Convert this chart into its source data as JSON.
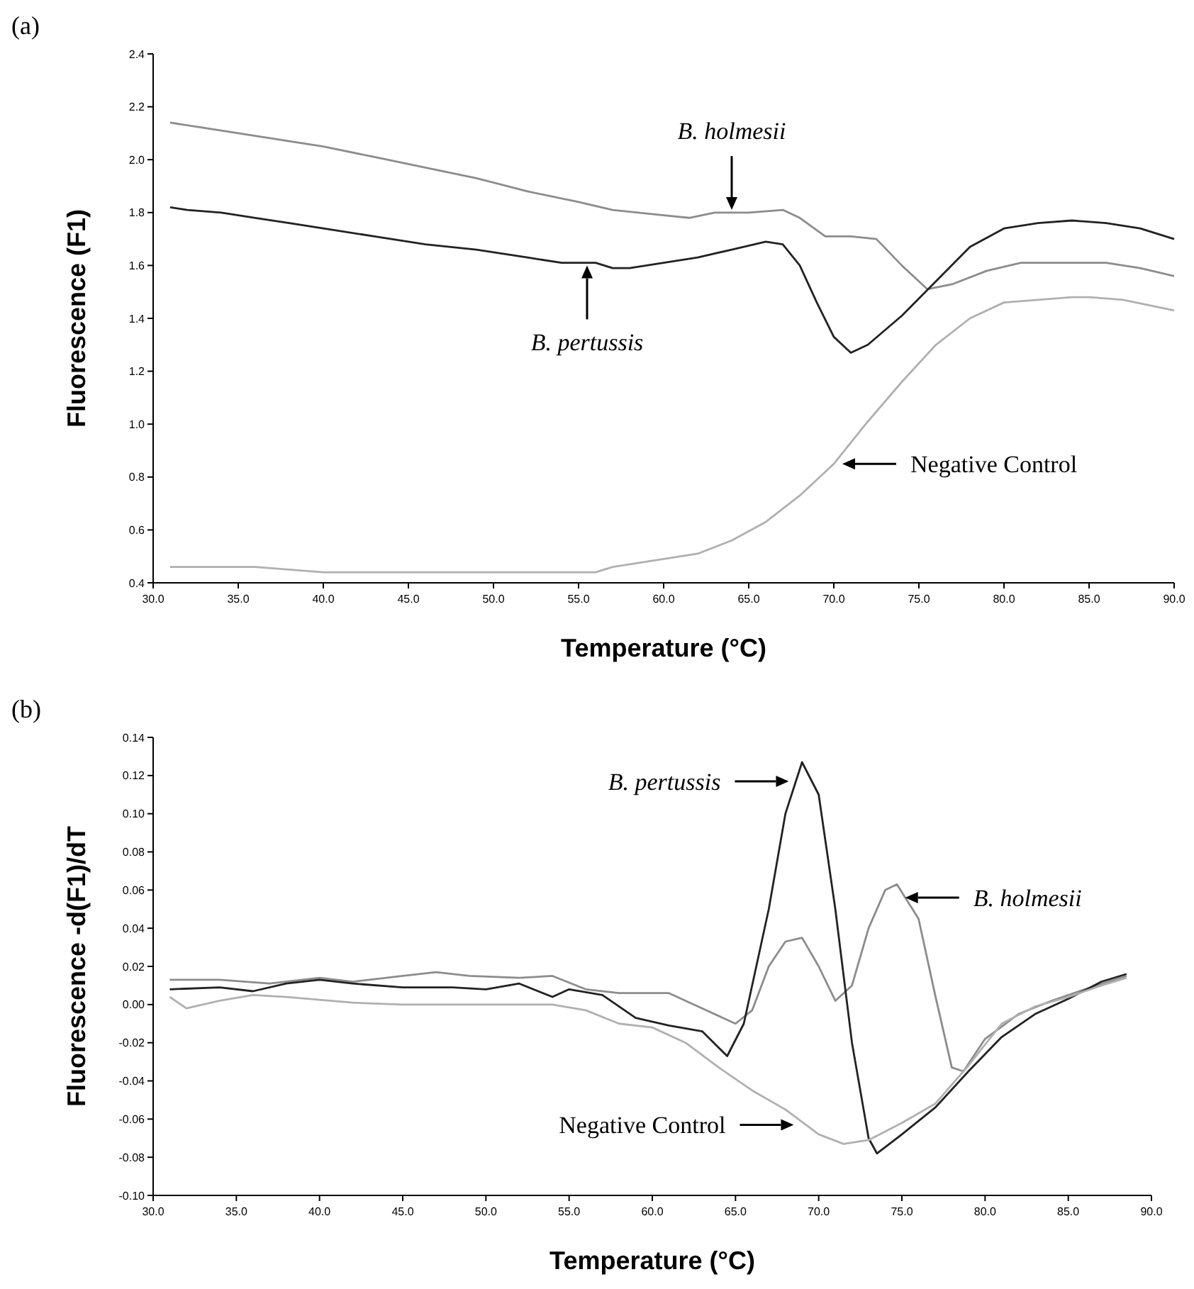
{
  "chart_data": [
    {
      "type": "line",
      "title": "(a)",
      "xlabel": "Temperature (°C)",
      "ylabel": "Fluorescence (F1)",
      "xlim": [
        30,
        90
      ],
      "xticks": [
        {
          "value": 30,
          "label": "30.0"
        },
        {
          "value": 35,
          "label": "35.0"
        },
        {
          "value": 40,
          "label": "40.0"
        },
        {
          "value": 45,
          "label": "45.0"
        },
        {
          "value": 50,
          "label": "50.0"
        },
        {
          "value": 55,
          "label": "55.0"
        },
        {
          "value": 60,
          "label": "60.0"
        },
        {
          "value": 65,
          "label": "65.0"
        },
        {
          "value": 70,
          "label": "70.0"
        },
        {
          "value": 75,
          "label": "75.0"
        },
        {
          "value": 80,
          "label": "80.0"
        },
        {
          "value": 85,
          "label": "85.0"
        },
        {
          "value": 90,
          "label": "90.0"
        }
      ],
      "ylim": [
        0.4,
        2.4
      ],
      "yticks": [
        0.4,
        0.6,
        0.8,
        {
          "value": 1,
          "label": "1.0"
        },
        1.2,
        1.4,
        1.6,
        1.8,
        {
          "value": 2,
          "label": "2.0"
        },
        2.2,
        2.4
      ],
      "series": [
        {
          "color": "#8c8c8c",
          "x": [
            31,
            33,
            35,
            38,
            40,
            43,
            46,
            49,
            52,
            55,
            57,
            60,
            61.5,
            63,
            65,
            67,
            68,
            69.5,
            71,
            72.5,
            74,
            75.5,
            77,
            79,
            81,
            83,
            86,
            88,
            90
          ],
          "values": [
            2.14,
            2.12,
            2.1,
            2.07,
            2.05,
            2.01,
            1.97,
            1.93,
            1.88,
            1.84,
            1.81,
            1.79,
            1.78,
            1.8,
            1.8,
            1.81,
            1.78,
            1.71,
            1.71,
            1.7,
            1.6,
            1.51,
            1.53,
            1.58,
            1.61,
            1.61,
            1.61,
            1.59,
            1.56
          ]
        },
        {
          "color": "#222222",
          "x": [
            31,
            32,
            34,
            36,
            38,
            40,
            43,
            46,
            49,
            52,
            54,
            56,
            57,
            58,
            60,
            62,
            64,
            66,
            67,
            68,
            69,
            70,
            71,
            72,
            74,
            76,
            78,
            80,
            82,
            84,
            86,
            88,
            90
          ],
          "values": [
            1.82,
            1.81,
            1.8,
            1.78,
            1.76,
            1.74,
            1.71,
            1.68,
            1.66,
            1.63,
            1.61,
            1.61,
            1.59,
            1.59,
            1.61,
            1.63,
            1.66,
            1.69,
            1.68,
            1.6,
            1.46,
            1.33,
            1.27,
            1.3,
            1.41,
            1.54,
            1.67,
            1.74,
            1.76,
            1.77,
            1.76,
            1.74,
            1.7
          ]
        },
        {
          "color": "#b0b0b0",
          "x": [
            31,
            35,
            36,
            38,
            40,
            45,
            50,
            55,
            56,
            57,
            60,
            62,
            64,
            66,
            68,
            70,
            72,
            74,
            76,
            78,
            80,
            82,
            84,
            85,
            87,
            90
          ],
          "values": [
            0.46,
            0.46,
            0.46,
            0.45,
            0.44,
            0.44,
            0.44,
            0.44,
            0.44,
            0.46,
            0.49,
            0.51,
            0.56,
            0.63,
            0.73,
            0.85,
            1.01,
            1.16,
            1.3,
            1.4,
            1.46,
            1.47,
            1.48,
            1.48,
            1.47,
            1.43
          ]
        }
      ],
      "annotations": [
        {
          "text": "B. holmesii",
          "x": 64,
          "y": 1.81
        },
        {
          "text": "B. pertussis",
          "x": 55.5,
          "y": 1.6
        },
        {
          "text": "Negative Control",
          "x": 70.5,
          "y": 0.85
        }
      ]
    },
    {
      "type": "line",
      "title": "(b)",
      "xlabel": "Temperature (°C)",
      "ylabel": "Fluorescence -d(F1)/dT",
      "xlim": [
        30,
        90
      ],
      "xticks": [
        {
          "value": 30,
          "label": "30.0"
        },
        {
          "value": 35,
          "label": "35.0"
        },
        {
          "value": 40,
          "label": "40.0"
        },
        {
          "value": 45,
          "label": "45.0"
        },
        {
          "value": 50,
          "label": "50.0"
        },
        {
          "value": 55,
          "label": "55.0"
        },
        {
          "value": 60,
          "label": "60.0"
        },
        {
          "value": 65,
          "label": "65.0"
        },
        {
          "value": 70,
          "label": "70.0"
        },
        {
          "value": 75,
          "label": "75.0"
        },
        {
          "value": 80,
          "label": "80.0"
        },
        {
          "value": 85,
          "label": "85.0"
        },
        {
          "value": 90,
          "label": "90.0"
        }
      ],
      "ylim": [
        -0.1,
        0.14
      ],
      "yticks": [
        {
          "value": -0.1,
          "label": "-0.10"
        },
        {
          "value": -0.08,
          "label": "-0.08"
        },
        {
          "value": -0.06,
          "label": "-0.06"
        },
        {
          "value": -0.04,
          "label": "-0.04"
        },
        {
          "value": -0.02,
          "label": "-0.02"
        },
        {
          "value": 0,
          "label": "0.00"
        },
        {
          "value": 0.02,
          "label": "0.02"
        },
        {
          "value": 0.04,
          "label": "0.04"
        },
        {
          "value": 0.06,
          "label": "0.06"
        },
        {
          "value": 0.08,
          "label": "0.08"
        },
        {
          "value": 0.1,
          "label": "0.10"
        },
        {
          "value": 0.12,
          "label": "0.12"
        },
        {
          "value": 0.14,
          "label": "0.14"
        }
      ],
      "series": [
        {
          "color": "#8c8c8c",
          "x": [
            31,
            34,
            37,
            40,
            42,
            45,
            47,
            49,
            52,
            54,
            56,
            58,
            61,
            63,
            65,
            66,
            67,
            68,
            69,
            70,
            71,
            72,
            73,
            74,
            74.7,
            76,
            77,
            78,
            78.7,
            80,
            82,
            84,
            86,
            88.5
          ],
          "values": [
            0.013,
            0.013,
            0.011,
            0.014,
            0.012,
            0.015,
            0.017,
            0.015,
            0.014,
            0.015,
            0.008,
            0.006,
            0.006,
            -0.002,
            -0.01,
            -0.003,
            0.02,
            0.033,
            0.035,
            0.02,
            0.002,
            0.01,
            0.04,
            0.06,
            0.063,
            0.045,
            0.005,
            -0.033,
            -0.035,
            -0.018,
            -0.005,
            0.002,
            0.008,
            0.015
          ]
        },
        {
          "color": "#222222",
          "x": [
            31,
            34,
            36,
            38,
            40,
            42,
            45,
            48,
            50,
            52,
            54,
            55,
            57,
            59,
            61,
            63,
            64.5,
            65.5,
            67,
            68,
            69,
            70,
            71,
            72,
            73,
            73.5,
            75,
            77,
            79,
            81,
            83,
            85,
            87,
            88.5
          ],
          "values": [
            0.008,
            0.009,
            0.007,
            0.011,
            0.013,
            0.011,
            0.009,
            0.009,
            0.008,
            0.011,
            0.004,
            0.008,
            0.005,
            -0.007,
            -0.011,
            -0.014,
            -0.027,
            -0.01,
            0.05,
            0.1,
            0.127,
            0.11,
            0.05,
            -0.02,
            -0.07,
            -0.078,
            -0.068,
            -0.054,
            -0.035,
            -0.017,
            -0.005,
            0.003,
            0.012,
            0.016
          ]
        },
        {
          "color": "#b0b0b0",
          "x": [
            31,
            32,
            34,
            36,
            38,
            42,
            45,
            50,
            54,
            56,
            58,
            60,
            62,
            64,
            66,
            68,
            70,
            71.5,
            73,
            75,
            77,
            79,
            81,
            83,
            85,
            87,
            88.5
          ],
          "values": [
            0.004,
            -0.002,
            0.002,
            0.005,
            0.004,
            0.001,
            0,
            0,
            0,
            -0.003,
            -0.01,
            -0.012,
            -0.02,
            -0.033,
            -0.045,
            -0.055,
            -0.068,
            -0.073,
            -0.071,
            -0.062,
            -0.052,
            -0.032,
            -0.01,
            -0.001,
            0.004,
            0.01,
            0.014
          ]
        }
      ],
      "annotations": [
        {
          "text": "B. pertussis",
          "x": 68.2,
          "y": 0.117
        },
        {
          "text": "B. holmesii",
          "x": 75.2,
          "y": 0.056
        },
        {
          "text": "Negative Control",
          "x": 68.5,
          "y": -0.063
        }
      ]
    }
  ]
}
